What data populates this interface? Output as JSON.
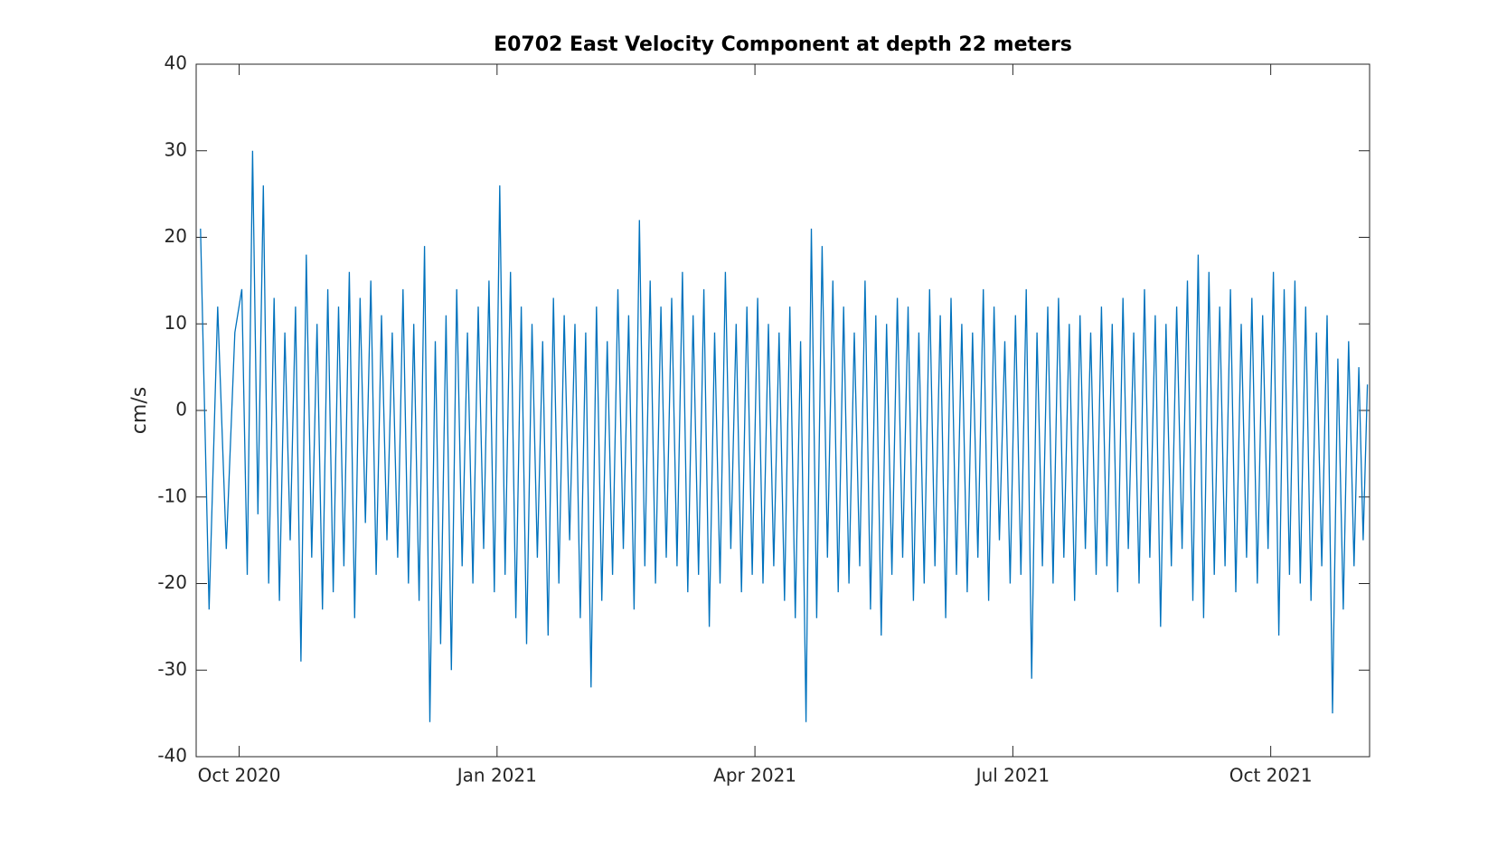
{
  "chart_data": {
    "type": "line",
    "title": "E0702 East Velocity Component at depth 22 meters",
    "y_label": "cm/s",
    "color": "#0072bd",
    "x": [
      "2020-09",
      "2020-10",
      "2020-11",
      "2020-12",
      "2021-01",
      "2021-02",
      "2021-03",
      "2021-04",
      "2021-05",
      "2021-06",
      "2021-07",
      "2021-08",
      "2021-09",
      "2021-10",
      "2021-11"
    ],
    "values": [
      [
        21,
        -23,
        12,
        -16,
        9
      ],
      [
        14,
        -19,
        30,
        -12,
        26,
        -20,
        13,
        -22,
        9,
        -15,
        12,
        -29,
        18,
        -17,
        10,
        -23
      ],
      [
        14,
        -21,
        12,
        -18,
        16,
        -24,
        13,
        -13,
        15,
        -19,
        11,
        -15,
        9,
        -17,
        14,
        -20
      ],
      [
        10,
        -22,
        19,
        -36,
        8,
        -27,
        11,
        -30,
        14,
        -18,
        9,
        -20,
        12,
        -16,
        15,
        -21
      ],
      [
        26,
        -19,
        16,
        -24,
        12,
        -27,
        10,
        -17,
        8,
        -26,
        13,
        -20,
        11,
        -15,
        10,
        -24
      ],
      [
        9,
        -32,
        12,
        -22,
        8,
        -19,
        14,
        -16,
        11,
        -23,
        22,
        -18,
        15,
        -20,
        12,
        -17
      ],
      [
        13,
        -18,
        16,
        -21,
        11,
        -19,
        14,
        -25,
        9,
        -20,
        16,
        -16,
        10,
        -21,
        12,
        -19
      ],
      [
        13,
        -20,
        10,
        -18,
        9,
        -22,
        12,
        -24,
        8,
        -36,
        21,
        -24,
        19,
        -17,
        15,
        -21
      ],
      [
        12,
        -20,
        9,
        -18,
        15,
        -23,
        11,
        -26,
        10,
        -19,
        13,
        -17,
        12,
        -22,
        9,
        -20
      ],
      [
        14,
        -18,
        11,
        -24,
        13,
        -19,
        10,
        -21,
        9,
        -17,
        14,
        -22,
        12,
        -15,
        8,
        -20
      ],
      [
        11,
        -19,
        14,
        -31,
        9,
        -18,
        12,
        -20,
        13,
        -17,
        10,
        -22,
        11,
        -16,
        9,
        -19
      ],
      [
        12,
        -18,
        10,
        -21,
        13,
        -16,
        9,
        -20,
        14,
        -17,
        11,
        -25,
        10,
        -18,
        12,
        -16
      ],
      [
        15,
        -22,
        18,
        -24,
        16,
        -19,
        12,
        -18,
        14,
        -21,
        10,
        -17,
        13,
        -20,
        11,
        -16
      ],
      [
        16,
        -26,
        14,
        -19,
        15,
        -20,
        12,
        -22,
        9,
        -18,
        11,
        -35,
        6,
        -23,
        8,
        -18
      ],
      [
        5,
        -15,
        3
      ]
    ],
    "xlim": [
      "2020-09",
      "2021-11"
    ],
    "xticks": [
      {
        "value": "2020-10",
        "label": "Oct 2020"
      },
      {
        "value": "2021-01",
        "label": "Jan 2021"
      },
      {
        "value": "2021-04",
        "label": "Apr 2021"
      },
      {
        "value": "2021-07",
        "label": "Jul 2021"
      },
      {
        "value": "2021-10",
        "label": "Oct 2021"
      }
    ],
    "ylim": [
      -40,
      40
    ],
    "yticks": [
      -40,
      -30,
      -20,
      -10,
      0,
      10,
      20,
      30,
      40
    ],
    "grid": false
  }
}
